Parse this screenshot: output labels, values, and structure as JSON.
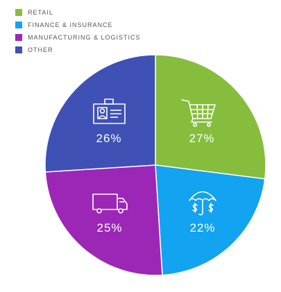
{
  "chart_data": {
    "type": "pie",
    "legend_position": "top-left",
    "slices": [
      {
        "name": "RETAIL",
        "value": 27,
        "label": "27%",
        "color": "#86bd3d",
        "icon": "shopping-cart-icon"
      },
      {
        "name": "FINANCE & INSURANCE",
        "value": 22,
        "label": "22%",
        "color": "#12a3f1",
        "icon": "umbrella-dollar-icon"
      },
      {
        "name": "MANUFACTURING & LOGISTICS",
        "value": 25,
        "label": "25%",
        "color": "#9c27b7",
        "icon": "delivery-truck-icon"
      },
      {
        "name": "OTHER",
        "value": 26,
        "label": "26%",
        "color": "#3f51b5",
        "icon": "id-badge-icon"
      }
    ]
  }
}
